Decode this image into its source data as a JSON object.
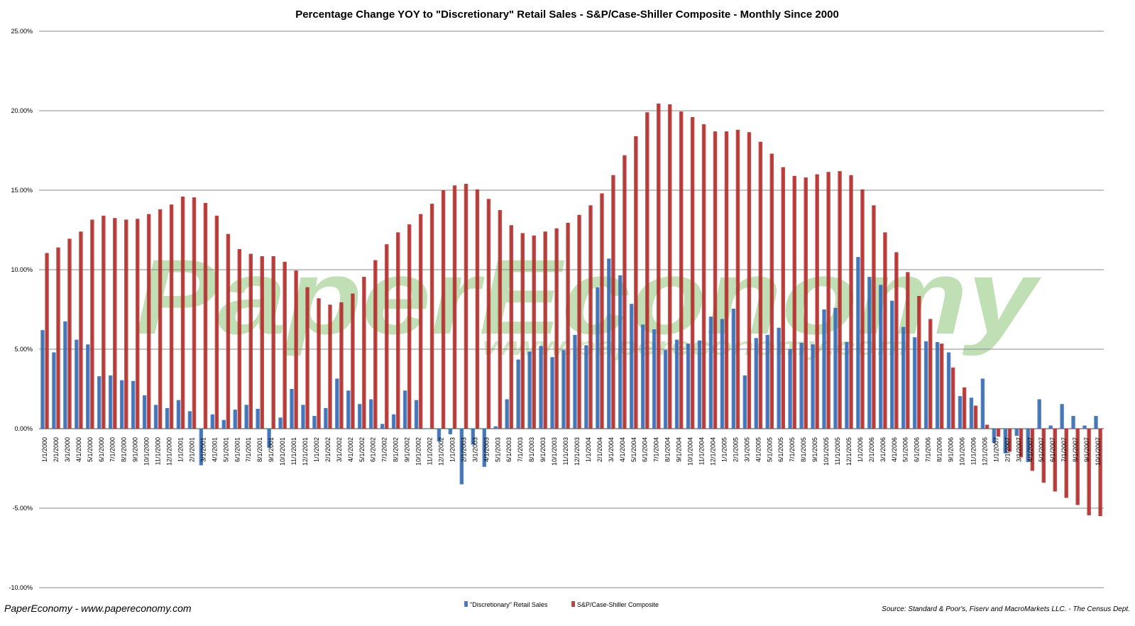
{
  "chart_data": {
    "type": "bar",
    "title": "Percentage Change YOY to \"Discretionary\" Retail Sales - S&P/Case-Shiller Composite - Monthly Since 2000",
    "ylim": [
      -10,
      25
    ],
    "yticks": [
      "25.00%",
      "20.00%",
      "15.00%",
      "10.00%",
      "5.00%",
      "0.00%",
      "-5.00%",
      "-10.00%"
    ],
    "ytick_values": [
      25,
      20,
      15,
      10,
      5,
      0,
      -5,
      -10
    ],
    "grid": true,
    "legend_position": "bottom-center",
    "categories": [
      "1/1/2000",
      "2/1/2000",
      "3/1/2000",
      "4/1/2000",
      "5/1/2000",
      "6/1/2000",
      "7/1/2000",
      "8/1/2000",
      "9/1/2000",
      "10/1/2000",
      "11/1/2000",
      "12/1/2000",
      "1/1/2001",
      "2/1/2001",
      "3/1/2001",
      "4/1/2001",
      "5/1/2001",
      "6/1/2001",
      "7/1/2001",
      "8/1/2001",
      "9/1/2001",
      "10/1/2001",
      "11/1/2001",
      "12/1/2001",
      "1/1/2002",
      "2/1/2002",
      "3/1/2002",
      "4/1/2002",
      "5/1/2002",
      "6/1/2002",
      "7/1/2002",
      "8/1/2002",
      "9/1/2002",
      "10/1/2002",
      "11/1/2002",
      "12/1/2002",
      "1/1/2003",
      "2/1/2003",
      "3/1/2003",
      "4/1/2003",
      "5/1/2003",
      "6/1/2003",
      "7/1/2003",
      "8/1/2003",
      "9/1/2003",
      "10/1/2003",
      "11/1/2003",
      "12/1/2003",
      "1/1/2004",
      "2/1/2004",
      "3/1/2004",
      "4/1/2004",
      "5/1/2004",
      "6/1/2004",
      "7/1/2004",
      "8/1/2004",
      "9/1/2004",
      "10/1/2004",
      "11/1/2004",
      "12/1/2004",
      "1/1/2005",
      "2/1/2005",
      "3/1/2005",
      "4/1/2005",
      "5/1/2005",
      "6/1/2005",
      "7/1/2005",
      "8/1/2005",
      "9/1/2005",
      "10/1/2005",
      "11/1/2005",
      "12/1/2005",
      "1/1/2006",
      "2/1/2006",
      "3/1/2006",
      "4/1/2006",
      "5/1/2006",
      "6/1/2006",
      "7/1/2006",
      "8/1/2006",
      "9/1/2006",
      "10/1/2006",
      "11/1/2006",
      "12/1/2006",
      "1/1/2007",
      "2/1/2007",
      "3/1/2007",
      "4/1/2007",
      "5/1/2007",
      "6/1/2007",
      "7/1/2007",
      "8/1/2007",
      "9/1/2007",
      "10/1/2007"
    ],
    "series": [
      {
        "name": "\"Discretionary\" Retail Sales",
        "color": "#3b6fb6",
        "values": [
          6.2,
          4.8,
          6.75,
          5.6,
          5.3,
          3.3,
          3.35,
          3.05,
          3.0,
          2.1,
          1.5,
          1.3,
          1.8,
          1.1,
          -2.3,
          0.9,
          0.55,
          1.2,
          1.5,
          1.25,
          -1.2,
          0.7,
          2.5,
          1.5,
          0.8,
          1.3,
          3.15,
          2.4,
          1.55,
          1.85,
          0.3,
          0.9,
          2.4,
          1.8,
          0.0,
          -0.8,
          -0.35,
          -3.5,
          -1.0,
          -2.4,
          0.15,
          1.85,
          4.35,
          4.85,
          5.2,
          4.5,
          4.95,
          5.9,
          5.25,
          8.9,
          10.7,
          9.65,
          7.85,
          6.55,
          6.25,
          4.95,
          5.6,
          5.35,
          5.55,
          7.05,
          6.9,
          7.55,
          3.35,
          5.7,
          5.9,
          6.35,
          5.0,
          5.4,
          5.3,
          7.5,
          7.6,
          5.45,
          10.8,
          9.55,
          9.05,
          8.05,
          6.4,
          5.75,
          5.5,
          5.45,
          4.8,
          2.05,
          1.95,
          3.15,
          -0.9,
          -1.55,
          -0.45,
          -2.1,
          1.85,
          0.2,
          1.55,
          0.8,
          0.2,
          0.8
        ]
      },
      {
        "name": "S&P/Case-Shiller Composite",
        "color": "#b5322f",
        "values": [
          11.05,
          11.4,
          11.95,
          12.4,
          13.15,
          13.4,
          13.25,
          13.15,
          13.2,
          13.5,
          13.8,
          14.1,
          14.6,
          14.55,
          14.2,
          13.4,
          12.25,
          11.3,
          11.0,
          10.85,
          10.85,
          10.5,
          9.95,
          8.9,
          8.2,
          7.8,
          7.95,
          8.5,
          9.55,
          10.6,
          11.6,
          12.35,
          12.85,
          13.5,
          14.15,
          15.0,
          15.3,
          15.4,
          15.05,
          14.45,
          13.75,
          12.8,
          12.3,
          12.15,
          12.4,
          12.6,
          12.95,
          13.45,
          14.05,
          14.8,
          15.95,
          17.2,
          18.4,
          19.9,
          20.45,
          20.4,
          19.95,
          19.6,
          19.15,
          18.7,
          18.7,
          18.8,
          18.65,
          18.05,
          17.3,
          16.45,
          15.9,
          15.8,
          16.0,
          16.15,
          16.2,
          15.95,
          15.05,
          14.05,
          12.35,
          11.1,
          9.85,
          8.35,
          6.9,
          5.35,
          3.85,
          2.6,
          1.45,
          0.25,
          -0.5,
          -1.45,
          -1.8,
          -2.65,
          -3.4,
          -3.95,
          -4.35,
          -4.8,
          -5.45,
          -5.5
        ]
      }
    ]
  },
  "watermark": {
    "brand": "PaperEconomy",
    "url": "www.papereconomy.com"
  },
  "footer": {
    "left": "PaperEconomy - www.papereconomy.com",
    "right": "Source: Standard & Poor's, Fiserv and MacroMarkets LLC. - The Census Dept."
  }
}
